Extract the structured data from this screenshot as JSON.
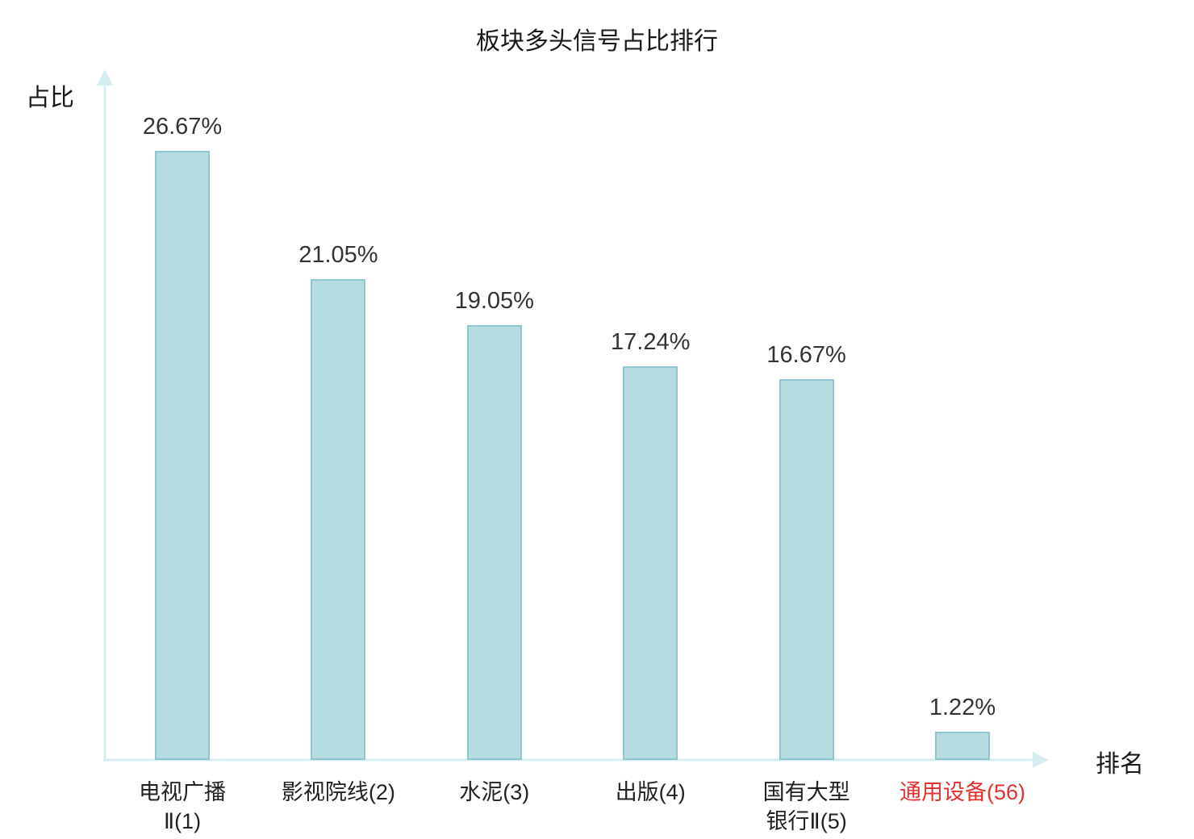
{
  "chart_data": {
    "type": "bar",
    "title": "板块多头信号占比排行",
    "xlabel": "排名",
    "ylabel": "占比",
    "categories": [
      "电视广播\nⅡ(1)",
      "影视院线(2)",
      "水泥(3)",
      "出版(4)",
      "国有大型\n银行Ⅱ(5)",
      "通用设备(56)"
    ],
    "values": [
      26.67,
      21.05,
      19.05,
      17.24,
      16.67,
      1.22
    ],
    "value_labels": [
      "26.67%",
      "21.05%",
      "19.05%",
      "17.24%",
      "16.67%",
      "1.22%"
    ],
    "highlight_index": 5,
    "ylim": [
      0,
      28
    ],
    "legend": "none",
    "grid": "off",
    "colors": {
      "bar_fill": "#b6dce1",
      "bar_border": "#8fc5cd",
      "axis": "#d6edef",
      "text": "#333333",
      "category_text": "#222222",
      "highlight_text": "#e5312f",
      "title_text": "#1a1a1a"
    }
  }
}
